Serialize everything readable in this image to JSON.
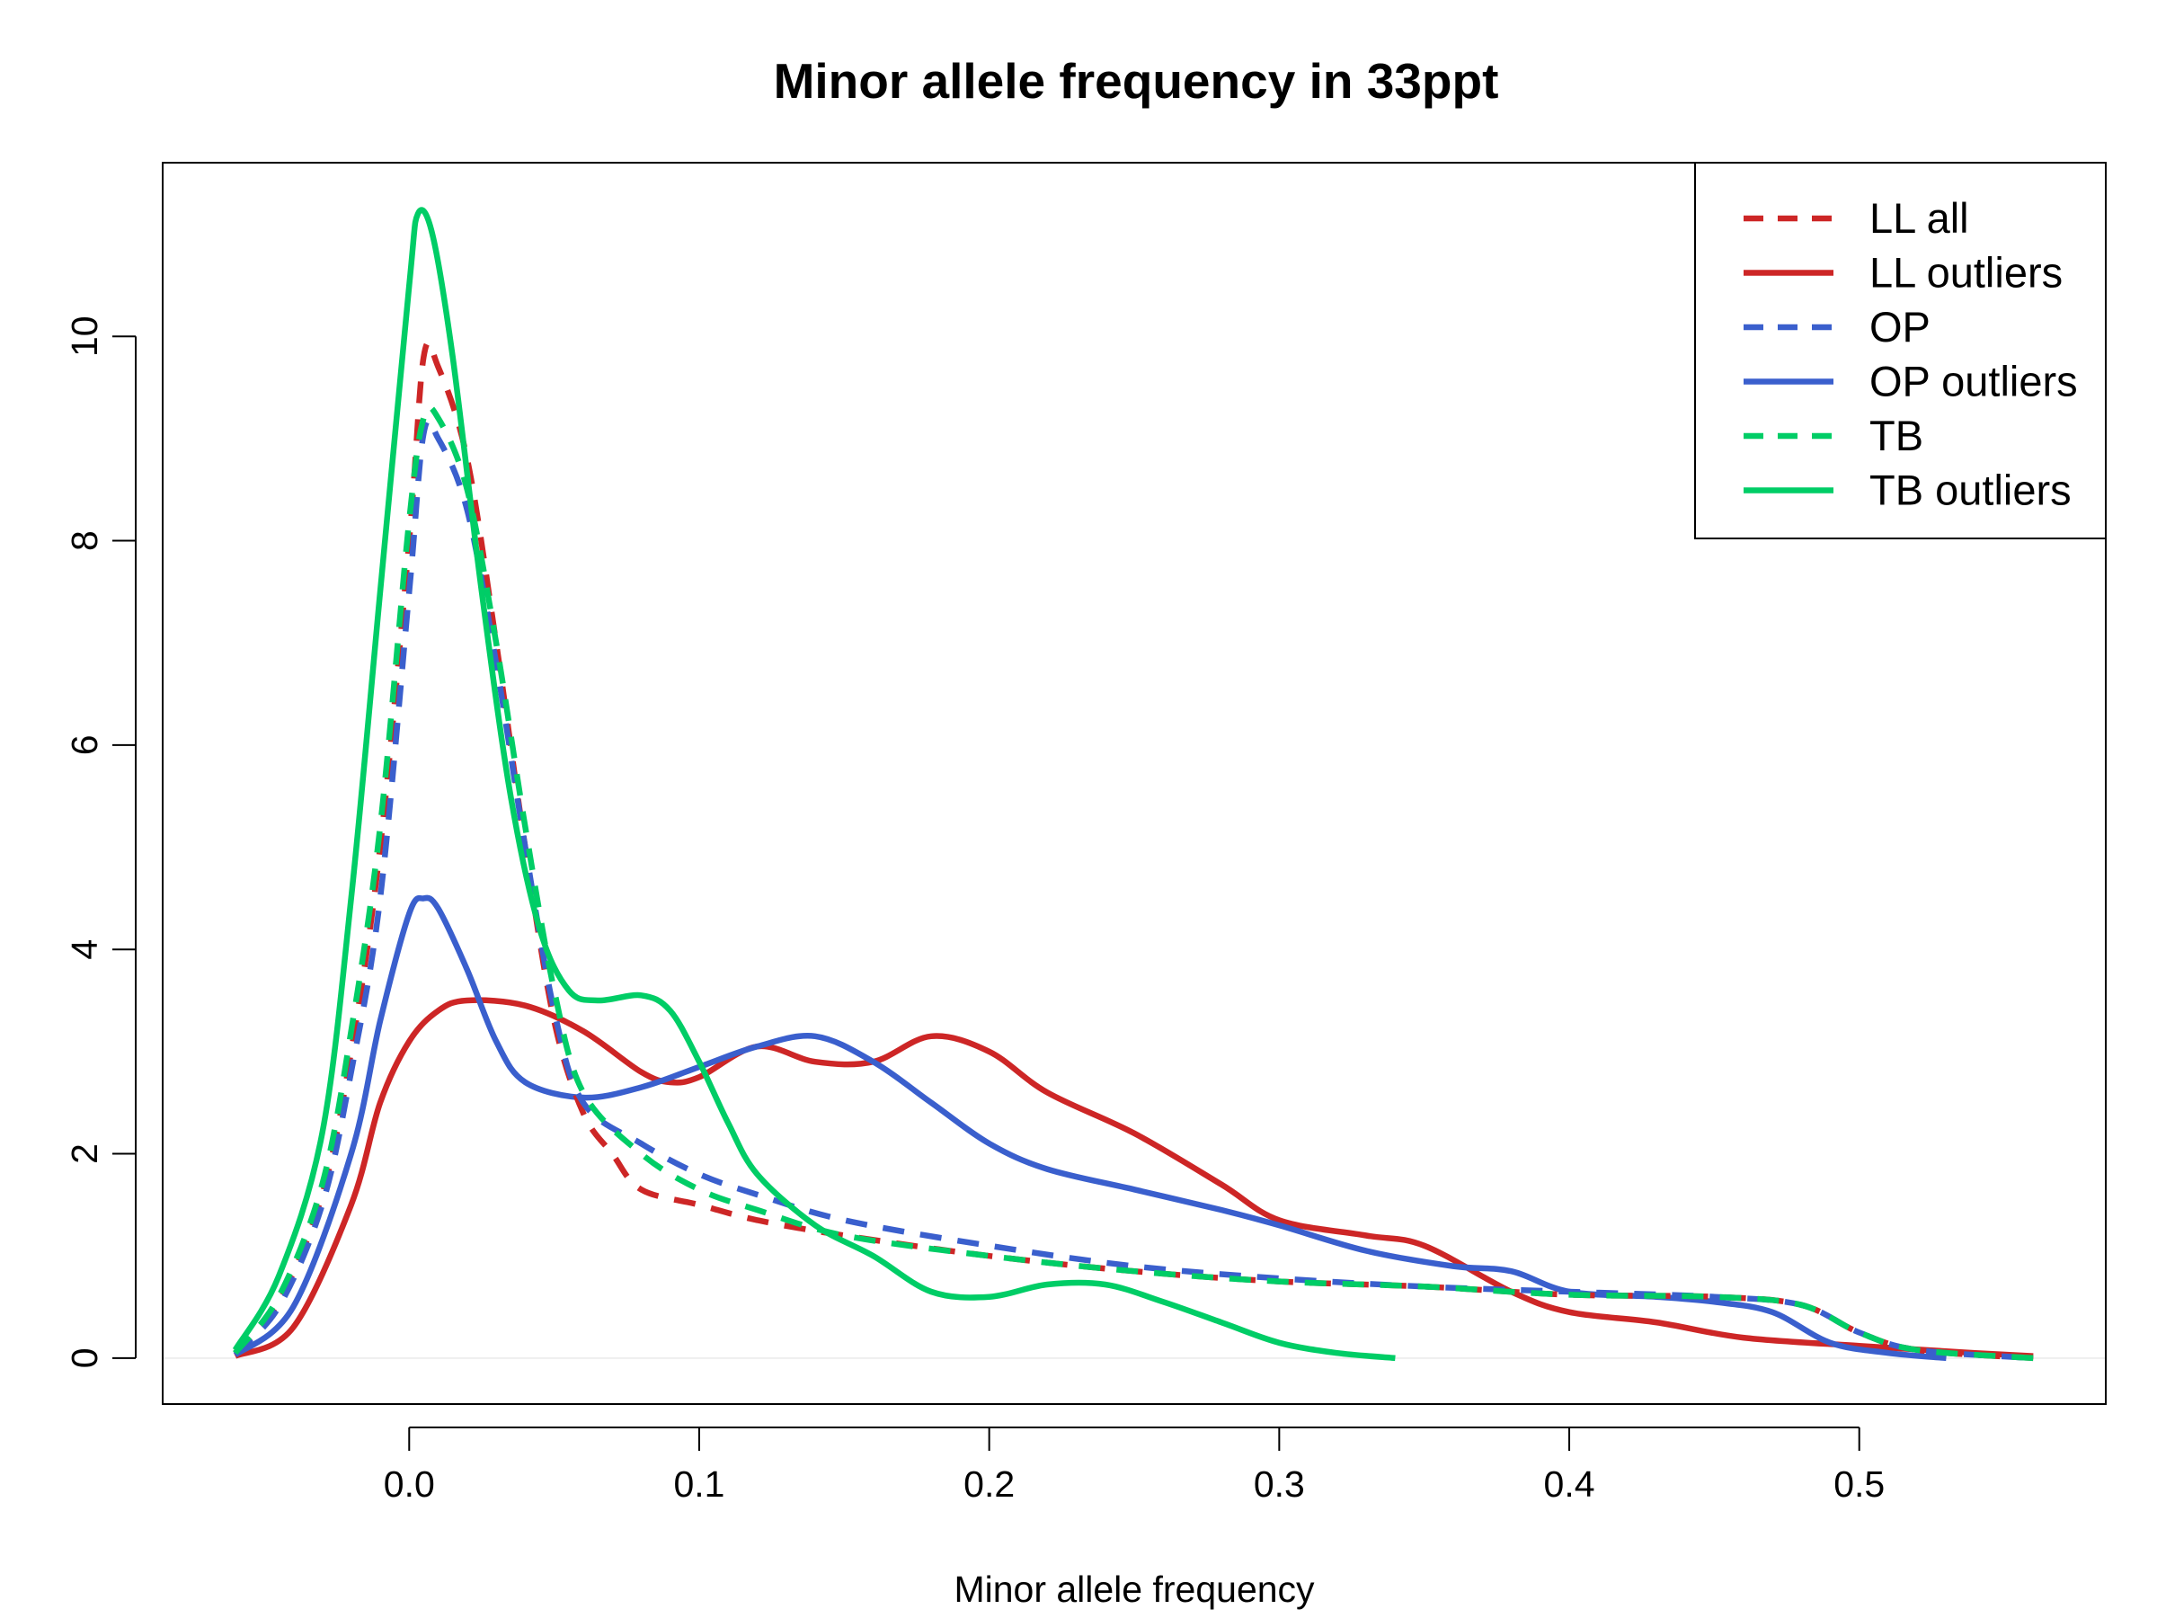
{
  "chart_data": {
    "type": "line",
    "title": "Minor allele frequency in 33ppt",
    "xlabel": "Minor allele frequency",
    "ylabel": "",
    "xlim": [
      -0.085,
      0.585
    ],
    "ylim": [
      -0.45,
      11.7
    ],
    "xticks": [
      "0.0",
      "0.1",
      "0.2",
      "0.3",
      "0.4",
      "0.5"
    ],
    "yticks": [
      "0",
      "2",
      "4",
      "6",
      "8",
      "10"
    ],
    "grid": false,
    "legend_position": "top-right",
    "series": [
      {
        "name": "LL all",
        "color": "#cd2626",
        "dash": "dashed",
        "points": [
          [
            -0.06,
            0.05
          ],
          [
            -0.045,
            0.55
          ],
          [
            -0.03,
            1.6
          ],
          [
            -0.02,
            3.0
          ],
          [
            -0.01,
            5.0
          ],
          [
            0.0,
            8.0
          ],
          [
            0.005,
            9.8
          ],
          [
            0.01,
            9.7
          ],
          [
            0.02,
            8.8
          ],
          [
            0.03,
            7.0
          ],
          [
            0.04,
            5.0
          ],
          [
            0.05,
            3.3
          ],
          [
            0.06,
            2.4
          ],
          [
            0.07,
            2.0
          ],
          [
            0.08,
            1.65
          ],
          [
            0.1,
            1.5
          ],
          [
            0.12,
            1.35
          ],
          [
            0.15,
            1.2
          ],
          [
            0.2,
            1.0
          ],
          [
            0.25,
            0.85
          ],
          [
            0.3,
            0.75
          ],
          [
            0.35,
            0.7
          ],
          [
            0.4,
            0.62
          ],
          [
            0.45,
            0.6
          ],
          [
            0.48,
            0.52
          ],
          [
            0.5,
            0.25
          ],
          [
            0.52,
            0.08
          ],
          [
            0.56,
            0.0
          ]
        ]
      },
      {
        "name": "LL outliers",
        "color": "#cd2626",
        "dash": "solid",
        "points": [
          [
            -0.06,
            0.02
          ],
          [
            -0.04,
            0.3
          ],
          [
            -0.02,
            1.5
          ],
          [
            -0.01,
            2.5
          ],
          [
            0.0,
            3.1
          ],
          [
            0.01,
            3.4
          ],
          [
            0.02,
            3.5
          ],
          [
            0.04,
            3.45
          ],
          [
            0.06,
            3.2
          ],
          [
            0.08,
            2.8
          ],
          [
            0.09,
            2.7
          ],
          [
            0.1,
            2.75
          ],
          [
            0.12,
            3.05
          ],
          [
            0.14,
            2.9
          ],
          [
            0.16,
            2.9
          ],
          [
            0.18,
            3.15
          ],
          [
            0.2,
            3.0
          ],
          [
            0.22,
            2.6
          ],
          [
            0.25,
            2.2
          ],
          [
            0.28,
            1.7
          ],
          [
            0.3,
            1.35
          ],
          [
            0.33,
            1.2
          ],
          [
            0.35,
            1.1
          ],
          [
            0.38,
            0.65
          ],
          [
            0.4,
            0.45
          ],
          [
            0.43,
            0.35
          ],
          [
            0.46,
            0.2
          ],
          [
            0.5,
            0.12
          ],
          [
            0.54,
            0.05
          ],
          [
            0.56,
            0.02
          ]
        ]
      },
      {
        "name": "OP",
        "color": "#3a5fcd",
        "dash": "dashed",
        "points": [
          [
            -0.06,
            0.05
          ],
          [
            -0.045,
            0.5
          ],
          [
            -0.03,
            1.5
          ],
          [
            -0.02,
            2.8
          ],
          [
            -0.01,
            4.5
          ],
          [
            0.0,
            7.5
          ],
          [
            0.005,
            9.05
          ],
          [
            0.01,
            9.0
          ],
          [
            0.02,
            8.3
          ],
          [
            0.03,
            6.8
          ],
          [
            0.04,
            5.0
          ],
          [
            0.05,
            3.4
          ],
          [
            0.06,
            2.5
          ],
          [
            0.08,
            2.1
          ],
          [
            0.1,
            1.8
          ],
          [
            0.12,
            1.6
          ],
          [
            0.15,
            1.35
          ],
          [
            0.2,
            1.1
          ],
          [
            0.25,
            0.9
          ],
          [
            0.3,
            0.78
          ],
          [
            0.35,
            0.7
          ],
          [
            0.4,
            0.65
          ],
          [
            0.45,
            0.6
          ],
          [
            0.48,
            0.52
          ],
          [
            0.5,
            0.25
          ],
          [
            0.52,
            0.08
          ],
          [
            0.56,
            0.0
          ]
        ]
      },
      {
        "name": "OP outliers",
        "color": "#3a5fcd",
        "dash": "solid",
        "points": [
          [
            -0.06,
            0.03
          ],
          [
            -0.04,
            0.5
          ],
          [
            -0.02,
            2.0
          ],
          [
            -0.01,
            3.3
          ],
          [
            0.0,
            4.35
          ],
          [
            0.005,
            4.5
          ],
          [
            0.01,
            4.4
          ],
          [
            0.02,
            3.8
          ],
          [
            0.03,
            3.1
          ],
          [
            0.04,
            2.7
          ],
          [
            0.06,
            2.55
          ],
          [
            0.08,
            2.65
          ],
          [
            0.1,
            2.85
          ],
          [
            0.12,
            3.05
          ],
          [
            0.14,
            3.15
          ],
          [
            0.16,
            2.9
          ],
          [
            0.18,
            2.5
          ],
          [
            0.2,
            2.1
          ],
          [
            0.22,
            1.85
          ],
          [
            0.25,
            1.65
          ],
          [
            0.28,
            1.45
          ],
          [
            0.3,
            1.3
          ],
          [
            0.33,
            1.05
          ],
          [
            0.36,
            0.9
          ],
          [
            0.38,
            0.85
          ],
          [
            0.4,
            0.65
          ],
          [
            0.43,
            0.6
          ],
          [
            0.45,
            0.55
          ],
          [
            0.47,
            0.45
          ],
          [
            0.49,
            0.15
          ],
          [
            0.51,
            0.05
          ],
          [
            0.53,
            0.0
          ]
        ]
      },
      {
        "name": "TB",
        "color": "#00cd66",
        "dash": "dashed",
        "points": [
          [
            -0.06,
            0.05
          ],
          [
            -0.045,
            0.6
          ],
          [
            -0.03,
            1.7
          ],
          [
            -0.02,
            3.2
          ],
          [
            -0.01,
            5.2
          ],
          [
            0.0,
            8.2
          ],
          [
            0.005,
            9.2
          ],
          [
            0.01,
            9.2
          ],
          [
            0.02,
            8.5
          ],
          [
            0.03,
            7.0
          ],
          [
            0.04,
            5.2
          ],
          [
            0.05,
            3.6
          ],
          [
            0.06,
            2.6
          ],
          [
            0.08,
            2.0
          ],
          [
            0.1,
            1.65
          ],
          [
            0.12,
            1.45
          ],
          [
            0.15,
            1.2
          ],
          [
            0.2,
            1.0
          ],
          [
            0.25,
            0.85
          ],
          [
            0.3,
            0.75
          ],
          [
            0.35,
            0.7
          ],
          [
            0.4,
            0.62
          ],
          [
            0.45,
            0.6
          ],
          [
            0.48,
            0.52
          ],
          [
            0.5,
            0.25
          ],
          [
            0.52,
            0.08
          ],
          [
            0.56,
            0.0
          ]
        ]
      },
      {
        "name": "TB outliers",
        "color": "#00cd66",
        "dash": "solid",
        "points": [
          [
            -0.06,
            0.08
          ],
          [
            -0.045,
            0.8
          ],
          [
            -0.03,
            2.2
          ],
          [
            -0.02,
            4.5
          ],
          [
            -0.01,
            7.5
          ],
          [
            0.0,
            10.5
          ],
          [
            0.003,
            11.2
          ],
          [
            0.008,
            11.0
          ],
          [
            0.015,
            9.8
          ],
          [
            0.025,
            7.5
          ],
          [
            0.035,
            5.5
          ],
          [
            0.045,
            4.2
          ],
          [
            0.055,
            3.6
          ],
          [
            0.065,
            3.5
          ],
          [
            0.08,
            3.55
          ],
          [
            0.09,
            3.4
          ],
          [
            0.1,
            2.9
          ],
          [
            0.11,
            2.3
          ],
          [
            0.12,
            1.8
          ],
          [
            0.14,
            1.3
          ],
          [
            0.16,
            1.0
          ],
          [
            0.18,
            0.65
          ],
          [
            0.2,
            0.6
          ],
          [
            0.22,
            0.72
          ],
          [
            0.24,
            0.72
          ],
          [
            0.26,
            0.55
          ],
          [
            0.28,
            0.35
          ],
          [
            0.3,
            0.15
          ],
          [
            0.32,
            0.05
          ],
          [
            0.34,
            0.0
          ]
        ]
      }
    ]
  }
}
